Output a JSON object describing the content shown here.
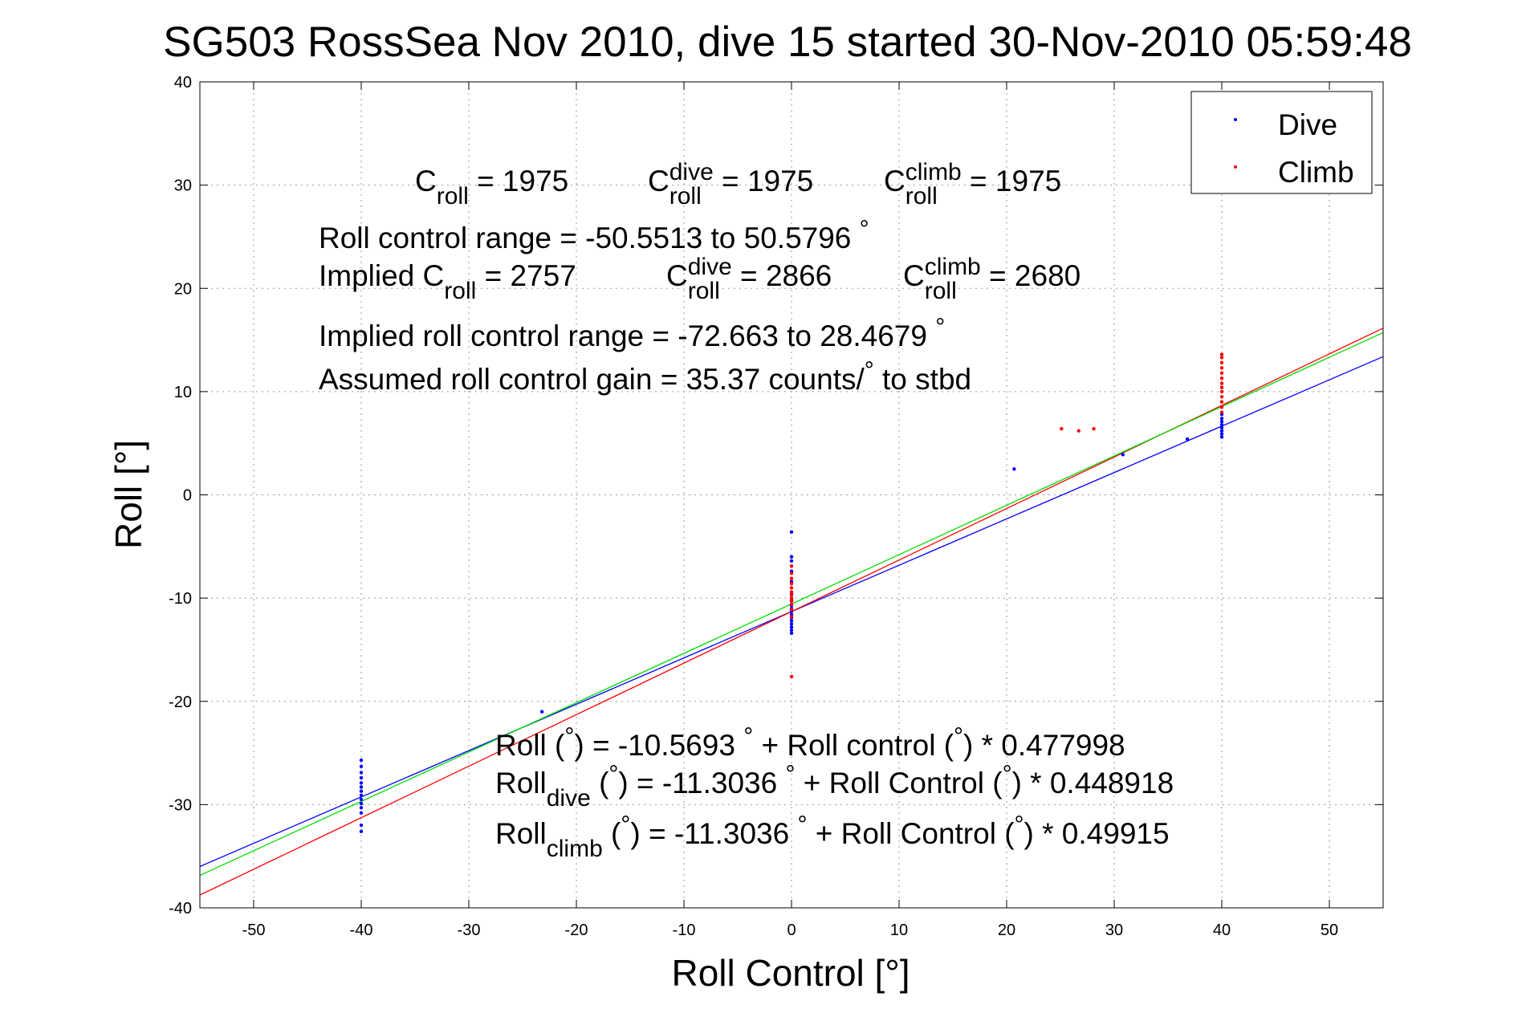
{
  "chart_data": {
    "type": "scatter",
    "title": "SG503 RossSea Nov 2010, dive 15 started 30-Nov-2010 05:59:48",
    "xlabel": "Roll Control [°]",
    "ylabel": "Roll [°]",
    "xlim": [
      -55,
      55
    ],
    "ylim": [
      -40,
      40
    ],
    "xticks": [
      -50,
      -40,
      -30,
      -20,
      -10,
      0,
      10,
      20,
      30,
      40,
      50
    ],
    "yticks": [
      -40,
      -30,
      -20,
      -10,
      0,
      10,
      20,
      30,
      40
    ],
    "grid": true,
    "legend": {
      "position": "top-right",
      "entries": [
        "Dive",
        "Climb"
      ]
    },
    "colors": {
      "dive": "#0000ff",
      "climb": "#ff0000",
      "combined_fit": "#00dd00"
    },
    "annotations": [
      {
        "parts": [
          [
            "C",
            ""
          ],
          [
            "roll",
            "sub"
          ],
          [
            " = 1975",
            ""
          ]
        ]
      },
      {
        "parts": [
          [
            "C",
            ""
          ],
          [
            "dive",
            "sup"
          ],
          [
            "roll",
            "sub"
          ],
          [
            " = 1975",
            ""
          ]
        ]
      },
      {
        "parts": [
          [
            "C",
            ""
          ],
          [
            "climb",
            "sup"
          ],
          [
            "roll",
            "sub"
          ],
          [
            " = 1975",
            ""
          ]
        ]
      },
      {
        "parts": [
          [
            "Roll control range = -50.5513 to 50.5796 ",
            ""
          ],
          [
            "°",
            "sup"
          ]
        ]
      },
      {
        "parts": [
          [
            "Implied C",
            ""
          ],
          [
            "roll",
            "sub"
          ],
          [
            " = 2757",
            ""
          ]
        ]
      },
      {
        "parts": [
          [
            "C",
            ""
          ],
          [
            "dive",
            "sup"
          ],
          [
            "roll",
            "sub"
          ],
          [
            " = 2866",
            ""
          ]
        ]
      },
      {
        "parts": [
          [
            "C",
            ""
          ],
          [
            "climb",
            "sup"
          ],
          [
            "roll",
            "sub"
          ],
          [
            " = 2680",
            ""
          ]
        ]
      },
      {
        "parts": [
          [
            "Implied roll control range = -72.663 to 28.4679 ",
            ""
          ],
          [
            "°",
            "sup"
          ]
        ]
      },
      {
        "parts": [
          [
            "Assumed roll control gain = 35.37 counts/",
            ""
          ],
          [
            "°",
            "sup"
          ],
          [
            " to stbd",
            ""
          ]
        ]
      },
      {
        "parts": [
          [
            "Roll (",
            ""
          ],
          [
            "°",
            "sup"
          ],
          [
            ") = -10.5693 ",
            ""
          ],
          [
            "°",
            "sup"
          ],
          [
            " + Roll control (",
            ""
          ],
          [
            "°",
            "sup"
          ],
          [
            ") * 0.477998",
            ""
          ]
        ]
      },
      {
        "parts": [
          [
            "Roll",
            ""
          ],
          [
            "dive",
            "sub"
          ],
          [
            " (",
            ""
          ],
          [
            "°",
            "sup"
          ],
          [
            ") = -11.3036 ",
            ""
          ],
          [
            "°",
            "sup"
          ],
          [
            " + Roll Control (",
            ""
          ],
          [
            "°",
            "sup"
          ],
          [
            ") * 0.448918",
            ""
          ]
        ]
      },
      {
        "parts": [
          [
            "Roll",
            ""
          ],
          [
            "climb",
            "sub"
          ],
          [
            " (",
            ""
          ],
          [
            "°",
            "sup"
          ],
          [
            ") = -11.3036 ",
            ""
          ],
          [
            "°",
            "sup"
          ],
          [
            " + Roll Control (",
            ""
          ],
          [
            "°",
            "sup"
          ],
          [
            ") * 0.49915",
            ""
          ]
        ]
      }
    ],
    "fit_lines": [
      {
        "name": "Dive",
        "color": "#0000ff",
        "intercept": -11.3036,
        "slope": 0.448918
      },
      {
        "name": "Climb",
        "color": "#ff0000",
        "intercept": -11.3036,
        "slope": 0.49915
      },
      {
        "name": "",
        "color": "#00dd00",
        "intercept": -10.5693,
        "slope": 0.477998
      }
    ],
    "series": [
      {
        "name": "Dive",
        "color": "#0000ff",
        "points": [
          [
            -40,
            -25.7
          ],
          [
            -40,
            -26.3
          ],
          [
            -40,
            -26.9
          ],
          [
            -40,
            -27.4
          ],
          [
            -40,
            -27.9
          ],
          [
            -40,
            -28.3
          ],
          [
            -40,
            -28.7
          ],
          [
            -40,
            -29.1
          ],
          [
            -40,
            -29.5
          ],
          [
            -40,
            -29.9
          ],
          [
            -40,
            -30.3
          ],
          [
            -40,
            -30.8
          ],
          [
            -40,
            -32.0
          ],
          [
            -40,
            -32.6
          ],
          [
            -23.2,
            -21.0
          ],
          [
            0,
            -3.6
          ],
          [
            0,
            -6.0
          ],
          [
            0,
            -6.4
          ],
          [
            0,
            -7.4
          ],
          [
            0,
            -8.4
          ],
          [
            0,
            -9.6
          ],
          [
            0,
            -10.2
          ],
          [
            0,
            -10.7
          ],
          [
            0,
            -11.0
          ],
          [
            0,
            -11.3
          ],
          [
            0,
            -11.6
          ],
          [
            0,
            -11.9
          ],
          [
            0,
            -12.2
          ],
          [
            0,
            -12.5
          ],
          [
            0,
            -12.8
          ],
          [
            0,
            -13.1
          ],
          [
            0,
            -13.4
          ],
          [
            20.7,
            2.5
          ],
          [
            30.8,
            3.9
          ],
          [
            36.8,
            5.4
          ],
          [
            40,
            5.6
          ],
          [
            40,
            5.9
          ],
          [
            40,
            6.2
          ],
          [
            40,
            6.5
          ],
          [
            40,
            6.8
          ],
          [
            40,
            7.1
          ],
          [
            40,
            7.4
          ],
          [
            40,
            7.8
          ]
        ]
      },
      {
        "name": "Climb",
        "color": "#ff0000",
        "points": [
          [
            0,
            -6.9
          ],
          [
            0,
            -7.6
          ],
          [
            0,
            -8.1
          ],
          [
            0,
            -8.6
          ],
          [
            0,
            -9.0
          ],
          [
            0,
            -9.4
          ],
          [
            0,
            -9.7
          ],
          [
            0,
            -10.0
          ],
          [
            0,
            -10.3
          ],
          [
            0,
            -10.6
          ],
          [
            0,
            -11.1
          ],
          [
            0,
            -11.8
          ],
          [
            0,
            -17.6
          ],
          [
            25.1,
            6.4
          ],
          [
            26.7,
            6.2
          ],
          [
            28.1,
            6.4
          ],
          [
            40,
            8.0
          ],
          [
            40,
            8.5
          ],
          [
            40,
            9.0
          ],
          [
            40,
            9.5
          ],
          [
            40,
            10.0
          ],
          [
            40,
            10.4
          ],
          [
            40,
            10.8
          ],
          [
            40,
            11.3
          ],
          [
            40,
            11.8
          ],
          [
            40,
            12.3
          ],
          [
            40,
            12.8
          ],
          [
            40,
            13.3
          ],
          [
            40,
            13.6
          ]
        ]
      }
    ]
  }
}
